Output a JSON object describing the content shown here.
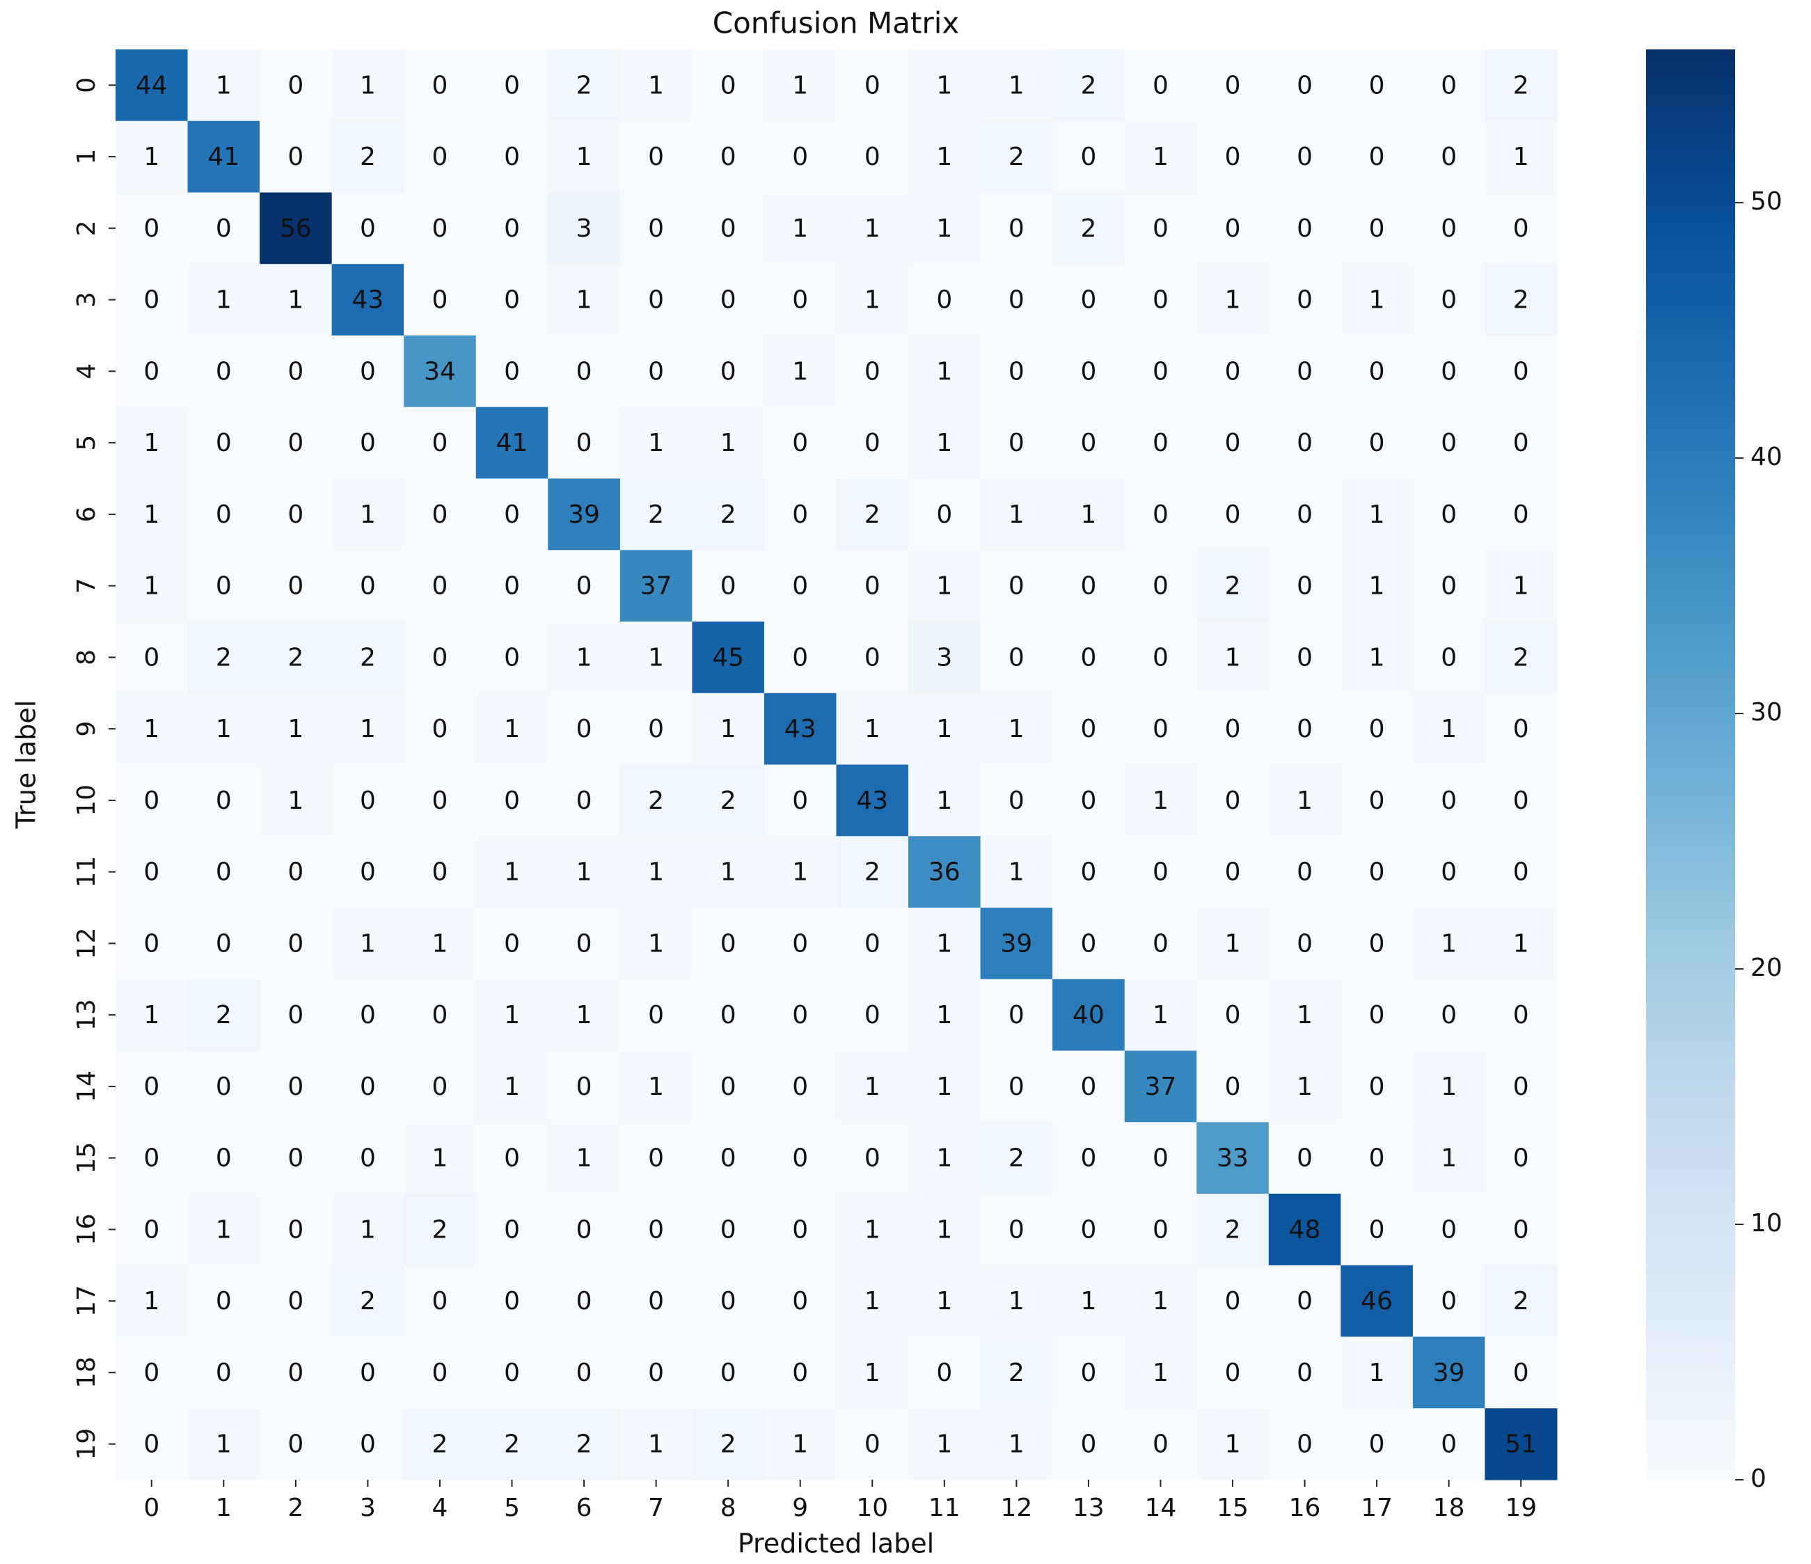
{
  "chart_data": {
    "type": "heatmap",
    "title": "Confusion Matrix",
    "xlabel": "Predicted label",
    "ylabel": "True label",
    "x_categories": [
      "0",
      "1",
      "2",
      "3",
      "4",
      "5",
      "6",
      "7",
      "8",
      "9",
      "10",
      "11",
      "12",
      "13",
      "14",
      "15",
      "16",
      "17",
      "18",
      "19"
    ],
    "y_categories": [
      "0",
      "1",
      "2",
      "3",
      "4",
      "5",
      "6",
      "7",
      "8",
      "9",
      "10",
      "11",
      "12",
      "13",
      "14",
      "15",
      "16",
      "17",
      "18",
      "19"
    ],
    "values": [
      [
        44,
        1,
        0,
        1,
        0,
        0,
        2,
        1,
        0,
        1,
        0,
        1,
        1,
        2,
        0,
        0,
        0,
        0,
        0,
        2
      ],
      [
        1,
        41,
        0,
        2,
        0,
        0,
        1,
        0,
        0,
        0,
        0,
        1,
        2,
        0,
        1,
        0,
        0,
        0,
        0,
        1
      ],
      [
        0,
        0,
        56,
        0,
        0,
        0,
        3,
        0,
        0,
        1,
        1,
        1,
        0,
        2,
        0,
        0,
        0,
        0,
        0,
        0
      ],
      [
        0,
        1,
        1,
        43,
        0,
        0,
        1,
        0,
        0,
        0,
        1,
        0,
        0,
        0,
        0,
        1,
        0,
        1,
        0,
        2
      ],
      [
        0,
        0,
        0,
        0,
        34,
        0,
        0,
        0,
        0,
        1,
        0,
        1,
        0,
        0,
        0,
        0,
        0,
        0,
        0,
        0
      ],
      [
        1,
        0,
        0,
        0,
        0,
        41,
        0,
        1,
        1,
        0,
        0,
        1,
        0,
        0,
        0,
        0,
        0,
        0,
        0,
        0
      ],
      [
        1,
        0,
        0,
        1,
        0,
        0,
        39,
        2,
        2,
        0,
        2,
        0,
        1,
        1,
        0,
        0,
        0,
        1,
        0,
        0
      ],
      [
        1,
        0,
        0,
        0,
        0,
        0,
        0,
        37,
        0,
        0,
        0,
        1,
        0,
        0,
        0,
        2,
        0,
        1,
        0,
        1
      ],
      [
        0,
        2,
        2,
        2,
        0,
        0,
        1,
        1,
        45,
        0,
        0,
        3,
        0,
        0,
        0,
        1,
        0,
        1,
        0,
        2
      ],
      [
        1,
        1,
        1,
        1,
        0,
        1,
        0,
        0,
        1,
        43,
        1,
        1,
        1,
        0,
        0,
        0,
        0,
        0,
        1,
        0
      ],
      [
        0,
        0,
        1,
        0,
        0,
        0,
        0,
        2,
        2,
        0,
        43,
        1,
        0,
        0,
        1,
        0,
        1,
        0,
        0,
        0
      ],
      [
        0,
        0,
        0,
        0,
        0,
        1,
        1,
        1,
        1,
        1,
        2,
        36,
        1,
        0,
        0,
        0,
        0,
        0,
        0,
        0
      ],
      [
        0,
        0,
        0,
        1,
        1,
        0,
        0,
        1,
        0,
        0,
        0,
        1,
        39,
        0,
        0,
        1,
        0,
        0,
        1,
        1
      ],
      [
        1,
        2,
        0,
        0,
        0,
        1,
        1,
        0,
        0,
        0,
        0,
        1,
        0,
        40,
        1,
        0,
        1,
        0,
        0,
        0
      ],
      [
        0,
        0,
        0,
        0,
        0,
        1,
        0,
        1,
        0,
        0,
        1,
        1,
        0,
        0,
        37,
        0,
        1,
        0,
        1,
        0
      ],
      [
        0,
        0,
        0,
        0,
        1,
        0,
        1,
        0,
        0,
        0,
        0,
        1,
        2,
        0,
        0,
        33,
        0,
        0,
        1,
        0
      ],
      [
        0,
        1,
        0,
        1,
        2,
        0,
        0,
        0,
        0,
        0,
        1,
        1,
        0,
        0,
        0,
        2,
        48,
        0,
        0,
        0
      ],
      [
        1,
        0,
        0,
        2,
        0,
        0,
        0,
        0,
        0,
        0,
        1,
        1,
        1,
        1,
        1,
        0,
        0,
        46,
        0,
        2
      ],
      [
        0,
        0,
        0,
        0,
        0,
        0,
        0,
        0,
        0,
        0,
        1,
        0,
        2,
        0,
        1,
        0,
        0,
        1,
        39,
        0
      ],
      [
        0,
        1,
        0,
        0,
        2,
        2,
        2,
        1,
        2,
        1,
        0,
        1,
        1,
        0,
        0,
        1,
        0,
        0,
        0,
        51
      ]
    ],
    "colormap": [
      "#f7fbff",
      "#deebf7",
      "#c6dbef",
      "#9ecae1",
      "#6baed6",
      "#4292c6",
      "#2171b5",
      "#08519c",
      "#08306b"
    ],
    "clim": [
      0,
      56
    ],
    "cticks": [
      0,
      10,
      20,
      30,
      40,
      50
    ]
  }
}
